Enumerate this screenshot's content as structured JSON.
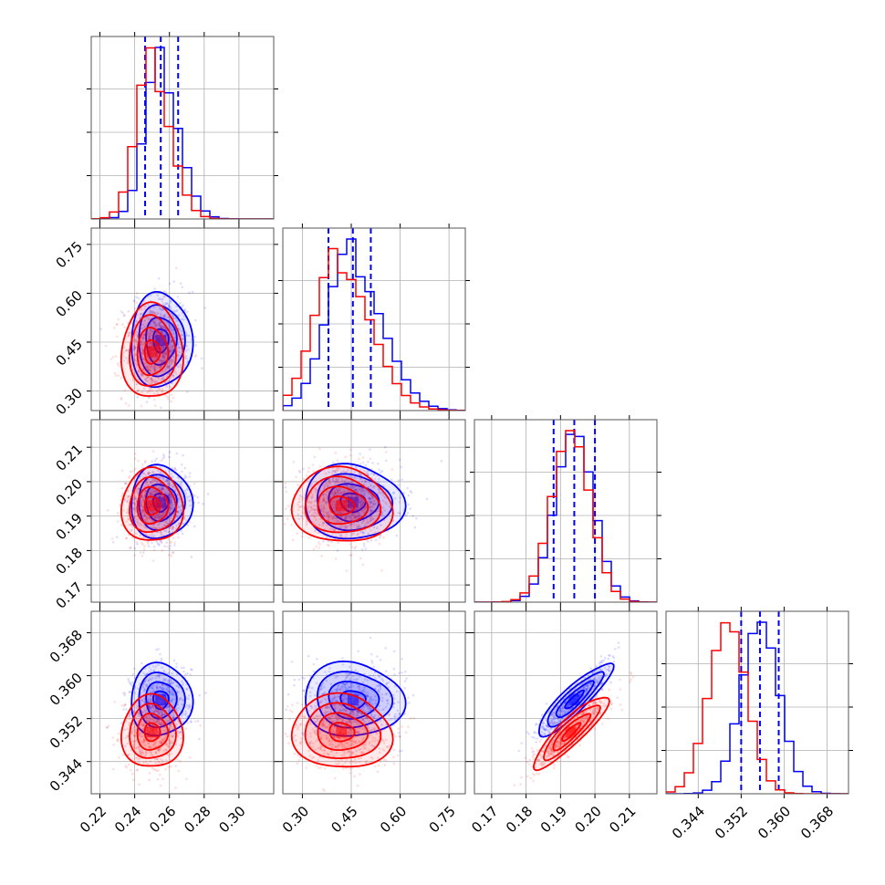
{
  "chart_data": {
    "type": "corner",
    "grid": true,
    "colors": {
      "series_a": "#0000ff",
      "series_b": "#ff0000",
      "frame": "#555555",
      "grid": "#b0b0b0"
    },
    "parameters": [
      {
        "range": [
          0.215,
          0.32
        ],
        "ticks": [
          0.22,
          0.24,
          0.26,
          0.28,
          0.3
        ],
        "tick_labels": [
          "0.22",
          "0.24",
          "0.26",
          "0.28",
          "0.30"
        ]
      },
      {
        "range": [
          0.24,
          0.8
        ],
        "ticks": [
          0.3,
          0.45,
          0.6,
          0.75
        ],
        "tick_labels": [
          "0.30",
          "0.45",
          "0.60",
          "0.75"
        ]
      },
      {
        "range": [
          0.165,
          0.218
        ],
        "ticks": [
          0.17,
          0.18,
          0.19,
          0.2,
          0.21
        ],
        "tick_labels": [
          "0.17",
          "0.18",
          "0.19",
          "0.20",
          "0.21"
        ]
      },
      {
        "range": [
          0.338,
          0.372
        ],
        "ticks": [
          0.344,
          0.352,
          0.36,
          0.368
        ],
        "tick_labels": [
          "0.344",
          "0.352",
          "0.360",
          "0.368"
        ]
      }
    ],
    "series": [
      {
        "color": "#0000ff",
        "mean": [
          0.255,
          0.455,
          0.194,
          0.3555
        ],
        "std": [
          0.0085,
          0.075,
          0.0055,
          0.0035
        ],
        "quantiles": [
          [
            0.246,
            0.255,
            0.265
          ],
          [
            0.38,
            0.455,
            0.51
          ],
          [
            0.188,
            0.194,
            0.2
          ],
          [
            0.352,
            0.3555,
            0.359
          ]
        ]
      },
      {
        "color": "#ff0000",
        "mean": [
          0.25,
          0.42,
          0.193,
          0.3495
        ],
        "std": [
          0.0085,
          0.075,
          0.0055,
          0.0035
        ],
        "quantiles": null
      }
    ],
    "correlations": [
      {
        "pair": [
          2,
          3
        ],
        "rho": 0.9
      }
    ]
  }
}
